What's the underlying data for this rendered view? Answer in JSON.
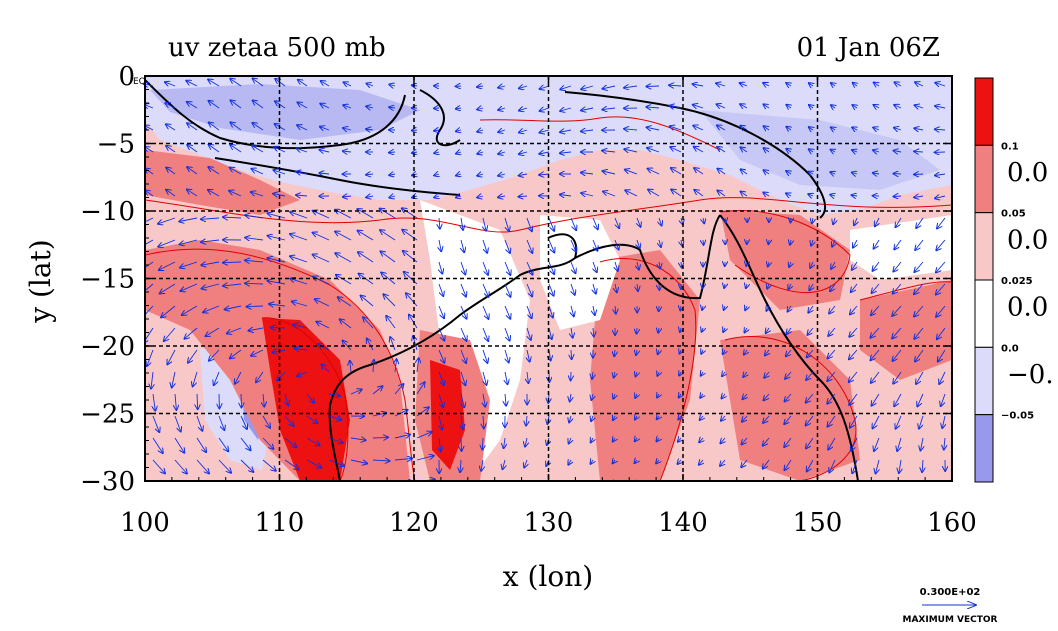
{
  "chart_data": {
    "type": "heatmap",
    "title": "uv zetaa 500 mb",
    "time_label": "01 Jan 06Z",
    "xlabel": "x (lon)",
    "ylabel": "y (lat)",
    "xlim": [
      100,
      160
    ],
    "ylim": [
      -30,
      0
    ],
    "x_ticks": [
      "100",
      "110",
      "120",
      "130",
      "140",
      "150",
      "160"
    ],
    "y_ticks": [
      "0",
      "−5",
      "−10",
      "−15",
      "−20",
      "−25",
      "−30"
    ],
    "x_tick_values": [
      100,
      110,
      120,
      130,
      140,
      150,
      160
    ],
    "y_tick_values": [
      0,
      -5,
      -10,
      -15,
      -20,
      -25,
      -30
    ],
    "corner_label": "EQ",
    "grid": true,
    "colorbar": {
      "small_labels": [
        "0.1",
        "0.05",
        "0.025",
        "0.0",
        "−0.05"
      ],
      "large_labels": [
        "0.0",
        "0.0",
        "0.0",
        "−0."
      ],
      "bins": [
        {
          "color": "#ee1111"
        },
        {
          "color": "#f08080"
        },
        {
          "color": "#f8c8c8"
        },
        {
          "color": "#ffffff"
        },
        {
          "color": "#dcdcfa"
        },
        {
          "color": "#9898ec"
        }
      ]
    },
    "vector_legend": {
      "value": "0.300E+02",
      "label": "MAXIMUM VECTOR"
    },
    "colors": {
      "contour": "#e00000",
      "vector": "#1030e0",
      "coast": "#000000",
      "grid": "#000000"
    }
  }
}
